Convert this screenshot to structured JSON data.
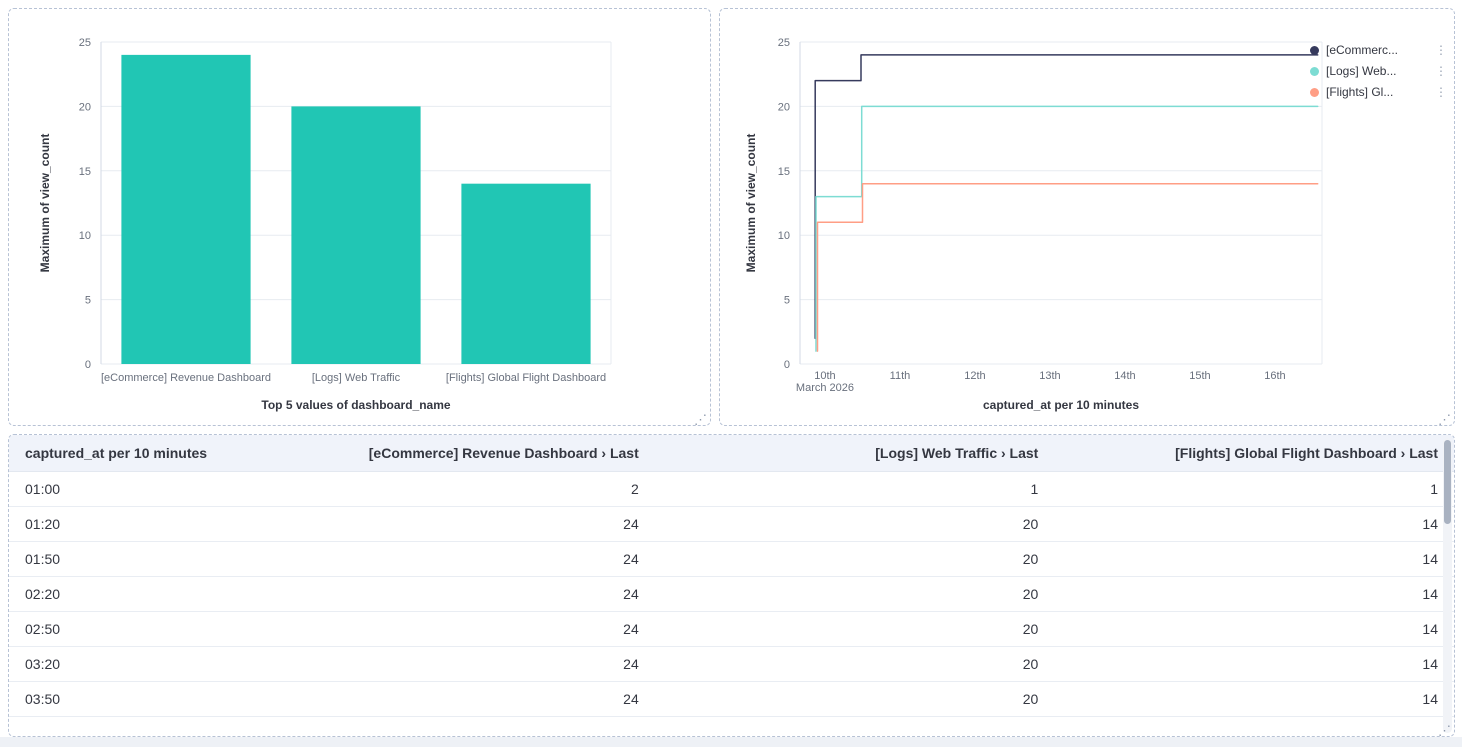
{
  "glyphs": {
    "resize_handle": "⋰",
    "legend_menu": "⋮"
  },
  "colors": {
    "bar": "#21C6B4",
    "grid": "#e7ebf1",
    "axis_line": "#d3dae6",
    "tick_text": "#69707D",
    "axis_title_text": "#343741",
    "panel_border": "#b7c2d5",
    "table_header_bg": "#f0f3fa"
  },
  "chart_data": [
    {
      "type": "bar",
      "title": "",
      "categories": [
        "[eCommerce] Revenue Dashboard",
        "[Logs] Web Traffic",
        "[Flights] Global Flight Dashboard"
      ],
      "values": [
        24,
        20,
        14
      ],
      "xlabel": "Top 5 values of dashboard_name",
      "ylabel": "Maximum of view_count",
      "ylim": [
        0,
        25
      ],
      "yticks": [
        0,
        5,
        10,
        15,
        20,
        25
      ],
      "grid": true,
      "legend_position": "none",
      "bar_color": "#21C6B4"
    },
    {
      "type": "line",
      "title": "",
      "xlabel": "captured_at per 10 minutes",
      "ylabel": "Maximum of view_count",
      "ylim": [
        0,
        25
      ],
      "yticks": [
        0,
        5,
        10,
        15,
        20,
        25
      ],
      "xlim": [
        9.667,
        16.627
      ],
      "grid": true,
      "legend_position": "right",
      "xticks": [
        {
          "x": 10,
          "label": "10th",
          "sublabel": "March 2026"
        },
        {
          "x": 11,
          "label": "11th"
        },
        {
          "x": 12,
          "label": "12th"
        },
        {
          "x": 13,
          "label": "13th"
        },
        {
          "x": 14,
          "label": "14th"
        },
        {
          "x": 15,
          "label": "15th"
        },
        {
          "x": 16,
          "label": "16th"
        }
      ],
      "series": [
        {
          "name": "[eCommerc...",
          "color": "#363A5D",
          "points": [
            [
              9.87,
              2
            ],
            [
              9.87,
              22
            ],
            [
              10.48,
              22
            ],
            [
              10.48,
              24
            ],
            [
              16.57,
              24
            ]
          ]
        },
        {
          "name": "[Logs] Web...",
          "color": "#7DDCD3",
          "points": [
            [
              9.88,
              1
            ],
            [
              9.88,
              13
            ],
            [
              10.49,
              13
            ],
            [
              10.49,
              20
            ],
            [
              16.57,
              20
            ]
          ]
        },
        {
          "name": "[Flights] Gl...",
          "color": "#FF9E85",
          "points": [
            [
              9.9,
              1
            ],
            [
              9.9,
              11
            ],
            [
              10.5,
              11
            ],
            [
              10.5,
              14
            ],
            [
              16.57,
              14
            ]
          ]
        }
      ]
    }
  ],
  "table": {
    "headers": [
      "captured_at per 10 minutes",
      "[eCommerce] Revenue Dashboard › Last",
      "[Logs] Web Traffic › Last",
      "[Flights] Global Flight Dashboard › Last"
    ],
    "rows": [
      [
        "01:00",
        "2",
        "1",
        "1"
      ],
      [
        "01:20",
        "24",
        "20",
        "14"
      ],
      [
        "01:50",
        "24",
        "20",
        "14"
      ],
      [
        "02:20",
        "24",
        "20",
        "14"
      ],
      [
        "02:50",
        "24",
        "20",
        "14"
      ],
      [
        "03:20",
        "24",
        "20",
        "14"
      ],
      [
        "03:50",
        "24",
        "20",
        "14"
      ]
    ]
  }
}
